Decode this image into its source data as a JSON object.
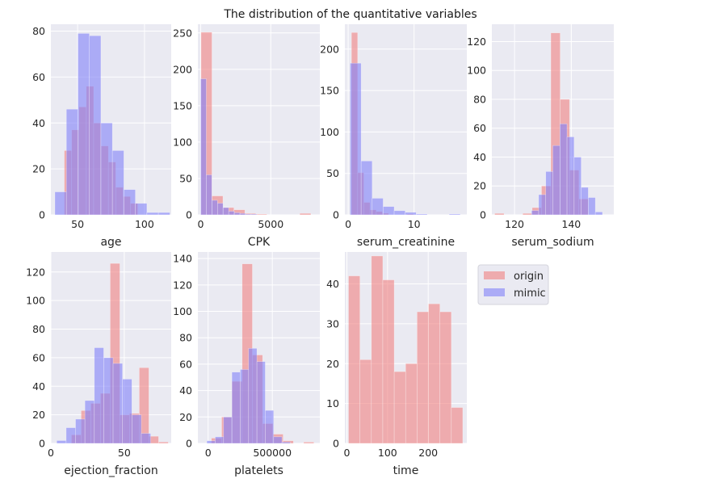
{
  "figure": {
    "title": "The distribution of the quantitative variables"
  },
  "colors": {
    "origin": "#f08080",
    "mimic": "#8080f8",
    "panel": "#eaeaf2",
    "grid": "#ffffff"
  },
  "legend": {
    "placement": "right-of-top-row-last-column",
    "entries": [
      "origin",
      "mimic"
    ]
  },
  "chart_data": [
    {
      "type": "bar",
      "id": "age",
      "xlabel": "age",
      "xlim": [
        30,
        120
      ],
      "ylim": [
        0,
        83
      ],
      "xticks": [
        50,
        100
      ],
      "yticks": [
        0,
        20,
        40,
        60,
        80
      ],
      "series": [
        {
          "name": "origin",
          "bin_edges": [
            40,
            45.5,
            51,
            56.5,
            62,
            67.5,
            73,
            78.5,
            84,
            89.5,
            95
          ],
          "counts": [
            28,
            37,
            47,
            56,
            40,
            30,
            23,
            12,
            8,
            5
          ]
        },
        {
          "name": "mimic",
          "bin_edges": [
            33,
            41.6,
            50.2,
            58.8,
            67.4,
            76,
            84.6,
            93.2,
            101.8,
            110.4,
            119
          ],
          "counts": [
            10,
            46,
            79,
            78,
            40,
            28,
            11,
            5,
            1,
            1
          ]
        }
      ]
    },
    {
      "type": "bar",
      "id": "CPK",
      "xlabel": "CPK",
      "xlim": [
        -200,
        8500
      ],
      "ylim": [
        0,
        262
      ],
      "xticks": [
        0,
        5000
      ],
      "yticks": [
        0,
        50,
        100,
        150,
        200,
        250
      ],
      "series": [
        {
          "name": "origin",
          "bin_edges": [
            23,
            806,
            1589,
            2372,
            3155,
            3938,
            4721,
            5504,
            6287,
            7070,
            7861
          ],
          "counts": [
            251,
            26,
            10,
            7,
            2,
            1,
            0,
            0,
            0,
            2
          ]
        },
        {
          "name": "mimic",
          "bin_edges": [
            0,
            400,
            800,
            1200,
            1600,
            2000,
            2400,
            2800,
            3200,
            3600,
            4000
          ],
          "counts": [
            187,
            55,
            20,
            16,
            10,
            5,
            3,
            2,
            1,
            1
          ]
        }
      ]
    },
    {
      "type": "bar",
      "id": "serum_creatinine",
      "xlabel": "serum_creatinine",
      "xlim": [
        -0.5,
        18
      ],
      "ylim": [
        0,
        230
      ],
      "xticks": [
        0,
        10
      ],
      "yticks": [
        0,
        50,
        100,
        150,
        200
      ],
      "series": [
        {
          "name": "origin",
          "bin_edges": [
            0.5,
            1.44,
            2.38,
            3.32,
            4.26,
            5.2,
            6.14,
            7.08,
            8.02,
            8.96,
            9.9
          ],
          "counts": [
            220,
            51,
            15,
            6,
            4,
            2,
            0,
            0,
            0,
            1
          ]
        },
        {
          "name": "mimic",
          "bin_edges": [
            0.3,
            1.97,
            3.64,
            5.31,
            6.98,
            8.65,
            10.32,
            11.99,
            13.66,
            15.33,
            17
          ],
          "counts": [
            183,
            65,
            20,
            10,
            5,
            3,
            1,
            0,
            0,
            1
          ]
        }
      ]
    },
    {
      "type": "bar",
      "id": "serum_sodium",
      "xlabel": "serum_sodium",
      "xlim": [
        112,
        155
      ],
      "ylim": [
        0,
        132
      ],
      "xticks": [
        120,
        140
      ],
      "yticks": [
        0,
        20,
        40,
        60,
        80,
        100,
        120
      ],
      "series": [
        {
          "name": "origin",
          "bin_edges": [
            113,
            116.3,
            119.6,
            122.9,
            126.2,
            129.5,
            132.8,
            136.1,
            139.4,
            142.7,
            146
          ],
          "counts": [
            1,
            0,
            0,
            1,
            5,
            20,
            126,
            80,
            31,
            11
          ]
        },
        {
          "name": "mimic",
          "bin_edges": [
            126,
            128.5,
            131,
            133.5,
            136,
            138.5,
            141,
            143.5,
            146,
            148.5,
            151
          ],
          "counts": [
            3,
            14,
            30,
            48,
            63,
            54,
            40,
            19,
            12,
            2
          ]
        }
      ]
    },
    {
      "type": "bar",
      "id": "ejection_fraction",
      "xlabel": "ejection_fraction",
      "xlim": [
        0,
        82
      ],
      "ylim": [
        0,
        134
      ],
      "xticks": [
        0,
        50
      ],
      "yticks": [
        0,
        20,
        40,
        60,
        80,
        100,
        120
      ],
      "series": [
        {
          "name": "origin",
          "bin_edges": [
            14,
            20.6,
            27.2,
            33.8,
            40.4,
            47,
            53.6,
            60.2,
            66.8,
            73.4,
            80
          ],
          "counts": [
            6,
            23,
            28,
            35,
            126,
            20,
            21,
            53,
            5,
            1
          ]
        },
        {
          "name": "mimic",
          "bin_edges": [
            4,
            10.4,
            16.8,
            23.2,
            29.6,
            36,
            42.4,
            48.8,
            55.2,
            61.6,
            68
          ],
          "counts": [
            2,
            11,
            17,
            30,
            67,
            60,
            56,
            45,
            20,
            7
          ]
        }
      ]
    },
    {
      "type": "bar",
      "id": "platelets",
      "xlabel": "platelets",
      "xlim": [
        -80000,
        870000
      ],
      "ylim": [
        0,
        145
      ],
      "xticks": [
        0,
        500000
      ],
      "yticks": [
        0,
        20,
        40,
        60,
        80,
        100,
        120,
        140
      ],
      "series": [
        {
          "name": "origin",
          "bin_edges": [
            25100,
            104990,
            184880,
            264770,
            344660,
            424550,
            504440,
            584330,
            664220,
            744110,
            824000
          ],
          "counts": [
            4,
            20,
            47,
            136,
            67,
            15,
            7,
            2,
            0,
            1
          ]
        },
        {
          "name": "mimic",
          "bin_edges": [
            -10000,
            55000,
            120000,
            185000,
            250000,
            315000,
            380000,
            445000,
            510000,
            575000,
            640000
          ],
          "counts": [
            2,
            5,
            20,
            54,
            56,
            72,
            62,
            25,
            5,
            1
          ]
        }
      ]
    },
    {
      "type": "bar",
      "id": "time",
      "xlabel": "time",
      "xlim": [
        -5,
        295
      ],
      "ylim": [
        0,
        48
      ],
      "xticks": [
        0,
        100,
        200
      ],
      "yticks": [
        0,
        10,
        20,
        30,
        40
      ],
      "series": [
        {
          "name": "origin",
          "bin_edges": [
            4,
            32.1,
            60.2,
            88.3,
            116.4,
            144.5,
            172.6,
            200.7,
            228.8,
            256.9,
            285
          ],
          "counts": [
            42,
            21,
            47,
            41,
            18,
            20,
            33,
            35,
            33,
            9
          ]
        }
      ]
    }
  ]
}
